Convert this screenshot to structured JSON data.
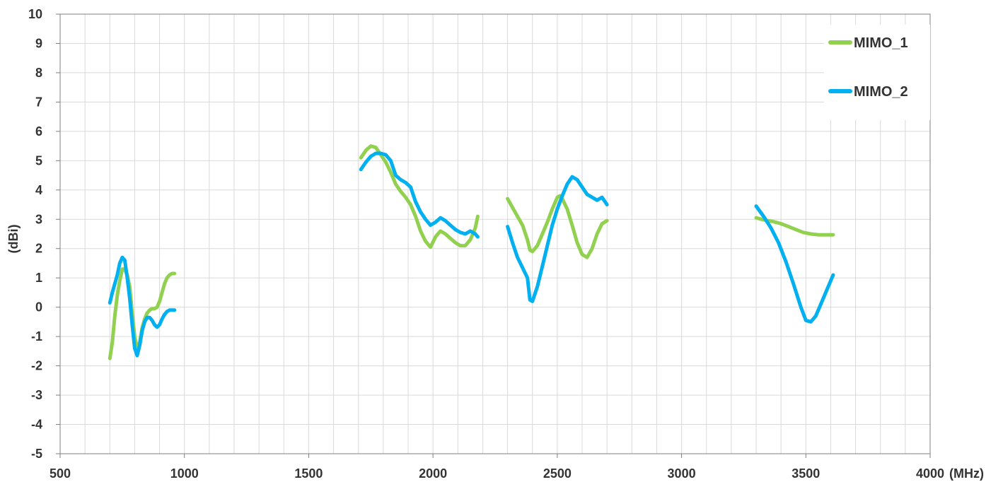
{
  "chart_data": {
    "type": "line",
    "title": "",
    "xlabel": "(MHz)",
    "ylabel": "(dBi)",
    "xlim": [
      500,
      4000
    ],
    "ylim": [
      -5,
      10
    ],
    "x_ticks": [
      500,
      1000,
      1500,
      2000,
      2500,
      3000,
      3500,
      4000
    ],
    "y_ticks": [
      -5,
      -4,
      -3,
      -2,
      -1,
      0,
      1,
      2,
      3,
      4,
      5,
      6,
      7,
      8,
      9,
      10
    ],
    "x_tick_labels": [
      "500",
      "1000",
      "1500",
      "2000",
      "2500",
      "3000",
      "3500",
      "4000"
    ],
    "y_tick_labels": [
      "-5",
      "-4",
      "-3",
      "-2",
      "-1",
      "0",
      "1",
      "2",
      "3",
      "4",
      "5",
      "6",
      "7",
      "8",
      "9",
      "10"
    ],
    "grid": true,
    "x_minor_step": 100,
    "legend_position": "top-right",
    "series": [
      {
        "name": "MIMO_1",
        "color": "#92D050",
        "segments": [
          [
            [
              700,
              -1.75
            ],
            [
              710,
              -1.2
            ],
            [
              720,
              -0.3
            ],
            [
              730,
              0.4
            ],
            [
              740,
              0.9
            ],
            [
              750,
              1.3
            ],
            [
              760,
              1.3
            ],
            [
              770,
              1.1
            ],
            [
              780,
              0.7
            ],
            [
              790,
              -0.2
            ],
            [
              800,
              -1.0
            ],
            [
              810,
              -1.4
            ],
            [
              820,
              -1.2
            ],
            [
              830,
              -0.7
            ],
            [
              840,
              -0.4
            ],
            [
              850,
              -0.2
            ],
            [
              860,
              -0.1
            ],
            [
              870,
              -0.05
            ],
            [
              880,
              -0.05
            ],
            [
              890,
              0.0
            ],
            [
              900,
              0.2
            ],
            [
              910,
              0.5
            ],
            [
              920,
              0.8
            ],
            [
              930,
              1.0
            ],
            [
              940,
              1.1
            ],
            [
              950,
              1.15
            ],
            [
              960,
              1.15
            ]
          ],
          [
            [
              1710,
              5.1
            ],
            [
              1730,
              5.35
            ],
            [
              1750,
              5.5
            ],
            [
              1770,
              5.45
            ],
            [
              1790,
              5.2
            ],
            [
              1810,
              4.95
            ],
            [
              1830,
              4.6
            ],
            [
              1850,
              4.2
            ],
            [
              1870,
              3.95
            ],
            [
              1890,
              3.75
            ],
            [
              1910,
              3.5
            ],
            [
              1930,
              3.1
            ],
            [
              1950,
              2.6
            ],
            [
              1970,
              2.25
            ],
            [
              1990,
              2.05
            ],
            [
              2010,
              2.4
            ],
            [
              2030,
              2.6
            ],
            [
              2050,
              2.5
            ],
            [
              2070,
              2.35
            ],
            [
              2090,
              2.2
            ],
            [
              2110,
              2.1
            ],
            [
              2130,
              2.1
            ],
            [
              2150,
              2.3
            ],
            [
              2170,
              2.7
            ],
            [
              2180,
              3.1
            ]
          ],
          [
            [
              2300,
              3.7
            ],
            [
              2320,
              3.4
            ],
            [
              2340,
              3.1
            ],
            [
              2360,
              2.8
            ],
            [
              2380,
              2.3
            ],
            [
              2390,
              1.95
            ],
            [
              2400,
              1.9
            ],
            [
              2420,
              2.1
            ],
            [
              2440,
              2.5
            ],
            [
              2460,
              2.9
            ],
            [
              2480,
              3.35
            ],
            [
              2500,
              3.75
            ],
            [
              2510,
              3.8
            ],
            [
              2520,
              3.7
            ],
            [
              2540,
              3.35
            ],
            [
              2560,
              2.8
            ],
            [
              2580,
              2.2
            ],
            [
              2600,
              1.8
            ],
            [
              2620,
              1.7
            ],
            [
              2640,
              2.0
            ],
            [
              2660,
              2.5
            ],
            [
              2680,
              2.85
            ],
            [
              2700,
              2.95
            ]
          ],
          [
            [
              3300,
              3.05
            ],
            [
              3330,
              2.98
            ],
            [
              3370,
              2.92
            ],
            [
              3400,
              2.85
            ],
            [
              3430,
              2.75
            ],
            [
              3460,
              2.65
            ],
            [
              3490,
              2.55
            ],
            [
              3520,
              2.5
            ],
            [
              3550,
              2.47
            ],
            [
              3580,
              2.47
            ],
            [
              3610,
              2.47
            ]
          ]
        ]
      },
      {
        "name": "MIMO_2",
        "color": "#00B0F0",
        "segments": [
          [
            [
              700,
              0.15
            ],
            [
              710,
              0.5
            ],
            [
              720,
              0.8
            ],
            [
              730,
              1.1
            ],
            [
              740,
              1.5
            ],
            [
              750,
              1.7
            ],
            [
              760,
              1.6
            ],
            [
              770,
              1.0
            ],
            [
              780,
              0.3
            ],
            [
              790,
              -0.6
            ],
            [
              800,
              -1.4
            ],
            [
              810,
              -1.65
            ],
            [
              820,
              -1.3
            ],
            [
              830,
              -0.8
            ],
            [
              840,
              -0.5
            ],
            [
              850,
              -0.35
            ],
            [
              860,
              -0.35
            ],
            [
              870,
              -0.45
            ],
            [
              880,
              -0.6
            ],
            [
              890,
              -0.68
            ],
            [
              900,
              -0.6
            ],
            [
              910,
              -0.4
            ],
            [
              920,
              -0.25
            ],
            [
              930,
              -0.15
            ],
            [
              940,
              -0.1
            ],
            [
              950,
              -0.1
            ],
            [
              960,
              -0.1
            ]
          ],
          [
            [
              1710,
              4.7
            ],
            [
              1730,
              4.95
            ],
            [
              1750,
              5.15
            ],
            [
              1770,
              5.25
            ],
            [
              1790,
              5.25
            ],
            [
              1810,
              5.2
            ],
            [
              1830,
              5.0
            ],
            [
              1850,
              4.5
            ],
            [
              1870,
              4.35
            ],
            [
              1890,
              4.25
            ],
            [
              1910,
              4.1
            ],
            [
              1930,
              3.6
            ],
            [
              1950,
              3.25
            ],
            [
              1970,
              3.0
            ],
            [
              1990,
              2.8
            ],
            [
              2010,
              2.9
            ],
            [
              2030,
              3.05
            ],
            [
              2050,
              2.95
            ],
            [
              2070,
              2.8
            ],
            [
              2090,
              2.65
            ],
            [
              2110,
              2.55
            ],
            [
              2130,
              2.5
            ],
            [
              2150,
              2.6
            ],
            [
              2170,
              2.5
            ],
            [
              2180,
              2.4
            ]
          ],
          [
            [
              2300,
              2.75
            ],
            [
              2320,
              2.2
            ],
            [
              2340,
              1.7
            ],
            [
              2360,
              1.35
            ],
            [
              2380,
              1.0
            ],
            [
              2390,
              0.25
            ],
            [
              2400,
              0.2
            ],
            [
              2420,
              0.7
            ],
            [
              2440,
              1.4
            ],
            [
              2460,
              2.1
            ],
            [
              2480,
              2.8
            ],
            [
              2500,
              3.35
            ],
            [
              2520,
              3.8
            ],
            [
              2540,
              4.2
            ],
            [
              2560,
              4.45
            ],
            [
              2580,
              4.35
            ],
            [
              2600,
              4.1
            ],
            [
              2620,
              3.85
            ],
            [
              2640,
              3.75
            ],
            [
              2660,
              3.65
            ],
            [
              2680,
              3.75
            ],
            [
              2700,
              3.5
            ]
          ],
          [
            [
              3300,
              3.45
            ],
            [
              3330,
              3.1
            ],
            [
              3360,
              2.7
            ],
            [
              3390,
              2.2
            ],
            [
              3420,
              1.55
            ],
            [
              3450,
              0.8
            ],
            [
              3480,
              0.0
            ],
            [
              3500,
              -0.45
            ],
            [
              3520,
              -0.5
            ],
            [
              3540,
              -0.3
            ],
            [
              3560,
              0.1
            ],
            [
              3580,
              0.5
            ],
            [
              3600,
              0.9
            ],
            [
              3610,
              1.1
            ]
          ]
        ]
      }
    ]
  }
}
